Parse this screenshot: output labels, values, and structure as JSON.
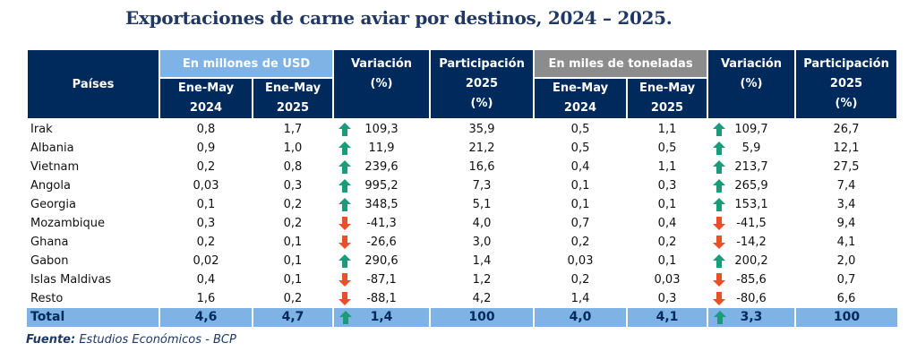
{
  "title": "Exportaciones de carne aviar por destinos, 2024 – 2025.",
  "header": {
    "countries": "Países",
    "usd_group": "En millones de USD",
    "ton_group": "En miles de toneladas",
    "period_2024": [
      "Ene-May",
      "2024"
    ],
    "period_2025": [
      "Ene-May",
      "2025"
    ],
    "variation": [
      "Variación",
      "(%)"
    ],
    "participation": [
      "Participación",
      "2025",
      "(%)"
    ]
  },
  "colors": {
    "up": "#1a9c7a",
    "down": "#e8502a",
    "header": "#002a5c",
    "usd": "#7fb2e5",
    "ton": "#8c8c8c"
  },
  "rows": [
    {
      "country": "Irak",
      "usd_2024": "0,8",
      "usd_2025": "1,7",
      "usd_dir": "up",
      "usd_var": "109,3",
      "usd_part": "35,9",
      "ton_2024": "0,5",
      "ton_2025": "1,1",
      "ton_dir": "up",
      "ton_var": "109,7",
      "ton_part": "26,7"
    },
    {
      "country": "Albania",
      "usd_2024": "0,9",
      "usd_2025": "1,0",
      "usd_dir": "up",
      "usd_var": "11,9",
      "usd_part": "21,2",
      "ton_2024": "0,5",
      "ton_2025": "0,5",
      "ton_dir": "up",
      "ton_var": "5,9",
      "ton_part": "12,1"
    },
    {
      "country": "Vietnam",
      "usd_2024": "0,2",
      "usd_2025": "0,8",
      "usd_dir": "up",
      "usd_var": "239,6",
      "usd_part": "16,6",
      "ton_2024": "0,4",
      "ton_2025": "1,1",
      "ton_dir": "up",
      "ton_var": "213,7",
      "ton_part": "27,5"
    },
    {
      "country": "Angola",
      "usd_2024": "0,03",
      "usd_2025": "0,3",
      "usd_dir": "up",
      "usd_var": "995,2",
      "usd_part": "7,3",
      "ton_2024": "0,1",
      "ton_2025": "0,3",
      "ton_dir": "up",
      "ton_var": "265,9",
      "ton_part": "7,4"
    },
    {
      "country": "Georgia",
      "usd_2024": "0,1",
      "usd_2025": "0,2",
      "usd_dir": "up",
      "usd_var": "348,5",
      "usd_part": "5,1",
      "ton_2024": "0,1",
      "ton_2025": "0,1",
      "ton_dir": "up",
      "ton_var": "153,1",
      "ton_part": "3,4"
    },
    {
      "country": "Mozambique",
      "usd_2024": "0,3",
      "usd_2025": "0,2",
      "usd_dir": "down",
      "usd_var": "-41,3",
      "usd_part": "4,0",
      "ton_2024": "0,7",
      "ton_2025": "0,4",
      "ton_dir": "down",
      "ton_var": "-41,5",
      "ton_part": "9,4"
    },
    {
      "country": "Ghana",
      "usd_2024": "0,2",
      "usd_2025": "0,1",
      "usd_dir": "down",
      "usd_var": "-26,6",
      "usd_part": "3,0",
      "ton_2024": "0,2",
      "ton_2025": "0,2",
      "ton_dir": "down",
      "ton_var": "-14,2",
      "ton_part": "4,1"
    },
    {
      "country": "Gabon",
      "usd_2024": "0,02",
      "usd_2025": "0,1",
      "usd_dir": "up",
      "usd_var": "290,6",
      "usd_part": "1,4",
      "ton_2024": "0,03",
      "ton_2025": "0,1",
      "ton_dir": "up",
      "ton_var": "200,2",
      "ton_part": "2,0"
    },
    {
      "country": "Islas Maldivas",
      "usd_2024": "0,4",
      "usd_2025": "0,1",
      "usd_dir": "down",
      "usd_var": "-87,1",
      "usd_part": "1,2",
      "ton_2024": "0,2",
      "ton_2025": "0,03",
      "ton_dir": "down",
      "ton_var": "-85,6",
      "ton_part": "0,7"
    },
    {
      "country": "Resto",
      "usd_2024": "1,6",
      "usd_2025": "0,2",
      "usd_dir": "down",
      "usd_var": "-88,1",
      "usd_part": "4,2",
      "ton_2024": "1,4",
      "ton_2025": "0,3",
      "ton_dir": "down",
      "ton_var": "-80,6",
      "ton_part": "6,6"
    }
  ],
  "total": {
    "country": "Total",
    "usd_2024": "4,6",
    "usd_2025": "4,7",
    "usd_dir": "up",
    "usd_var": "1,4",
    "usd_part": "100",
    "ton_2024": "4,0",
    "ton_2025": "4,1",
    "ton_dir": "up",
    "ton_var": "3,3",
    "ton_part": "100"
  },
  "source": {
    "label": "Fuente:",
    "text": " Estudios Económicos - BCP"
  }
}
